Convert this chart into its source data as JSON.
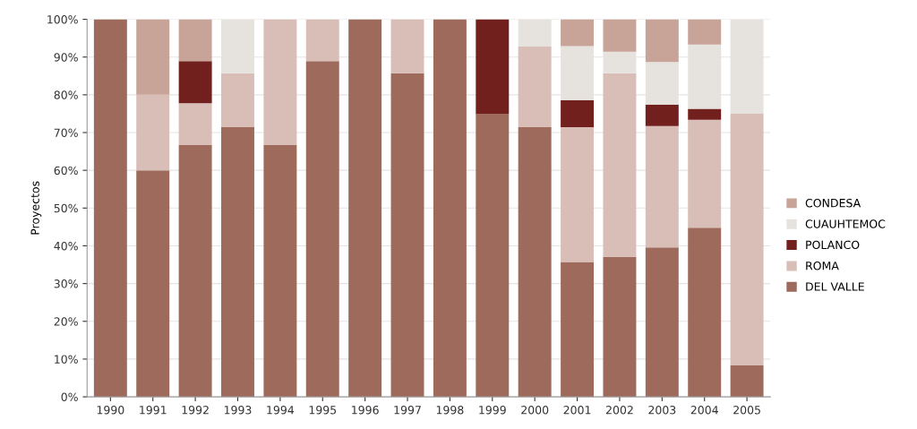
{
  "chart_data": {
    "type": "bar",
    "stacked": true,
    "ylabel": "Proyectos",
    "categories": [
      "1990",
      "1991",
      "1992",
      "1993",
      "1994",
      "1995",
      "1996",
      "1997",
      "1998",
      "1999",
      "2000",
      "2001",
      "2002",
      "2003",
      "2004",
      "2005"
    ],
    "series": [
      {
        "name": "DEL VALLE",
        "color": "#9e6a5b",
        "values": [
          100,
          60,
          66.7,
          71.4,
          66.7,
          88.9,
          100,
          85.7,
          100,
          75,
          71.4,
          35.7,
          37.1,
          39.6,
          44.8,
          8.3
        ]
      },
      {
        "name": "ROMA",
        "color": "#d8beb6",
        "values": [
          null,
          20,
          11.1,
          14.3,
          33.3,
          11.1,
          null,
          14.3,
          null,
          null,
          21.4,
          35.7,
          48.6,
          32.1,
          28.6,
          66.7
        ]
      },
      {
        "name": "POLANCO",
        "color": "#72201e",
        "values": [
          null,
          null,
          11.1,
          null,
          null,
          null,
          null,
          null,
          null,
          25,
          null,
          7.2,
          null,
          5.7,
          2.9,
          null
        ]
      },
      {
        "name": "CUAUHTEMOC",
        "color": "#e6e3df",
        "values": [
          null,
          null,
          null,
          14.3,
          null,
          null,
          null,
          null,
          null,
          null,
          7.2,
          14.3,
          5.7,
          11.3,
          17,
          25
        ]
      },
      {
        "name": "CONDESA",
        "color": "#c7a398",
        "values": [
          null,
          20,
          11.1,
          null,
          null,
          null,
          null,
          null,
          null,
          null,
          null,
          7.1,
          8.6,
          11.3,
          6.7,
          null
        ]
      }
    ],
    "ylim": [
      0,
      100
    ],
    "yticks": [
      {
        "value": 0,
        "label": "0%"
      },
      {
        "value": 10,
        "label": "10%"
      },
      {
        "value": 20,
        "label": "20%"
      },
      {
        "value": 30,
        "label": "30%"
      },
      {
        "value": 40,
        "label": "40%"
      },
      {
        "value": 50,
        "label": "50%"
      },
      {
        "value": 60,
        "label": "60%"
      },
      {
        "value": 70,
        "label": "70%"
      },
      {
        "value": 80,
        "label": "80%"
      },
      {
        "value": 90,
        "label": "90%"
      },
      {
        "value": 100,
        "label": "100%"
      }
    ],
    "grid": "y",
    "legend": "right"
  }
}
